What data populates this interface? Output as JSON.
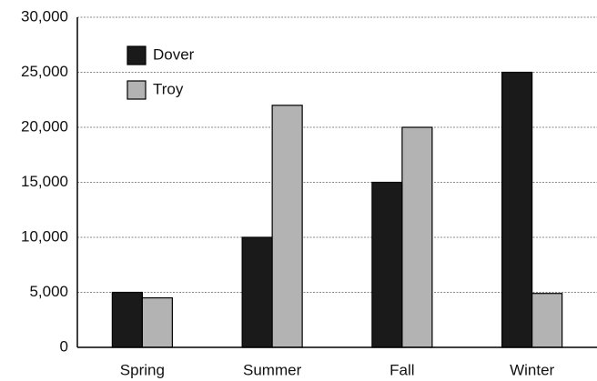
{
  "chart_data": {
    "type": "bar",
    "categories": [
      "Spring",
      "Summer",
      "Fall",
      "Winter"
    ],
    "series": [
      {
        "name": "Dover",
        "color": "#1a1a1a",
        "values": [
          5000,
          10000,
          15000,
          25000
        ]
      },
      {
        "name": "Troy",
        "color": "#b3b3b3",
        "values": [
          4500,
          22000,
          20000,
          4900
        ]
      }
    ],
    "ylim": [
      0,
      30000
    ],
    "yticks": [
      0,
      {
        "value": 5000,
        "label": "5,000"
      },
      {
        "value": 10000,
        "label": "10,000"
      },
      {
        "value": 15000,
        "label": "15,000"
      },
      {
        "value": 20000,
        "label": "20,000"
      },
      {
        "value": 25000,
        "label": "25,000"
      },
      {
        "value": 30000,
        "label": "30,000"
      }
    ],
    "grid": true,
    "legend": "top-left"
  }
}
